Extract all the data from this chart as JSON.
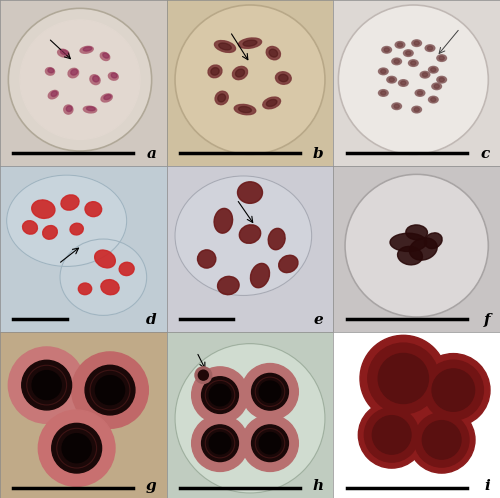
{
  "figure_size": [
    5.0,
    4.98
  ],
  "dpi": 100,
  "background_color": "#ffffff",
  "grid_rows": 3,
  "grid_cols": 3,
  "panel_labels": [
    "a",
    "b",
    "c",
    "d",
    "e",
    "f",
    "g",
    "h",
    "i"
  ],
  "label_fontsize": 11,
  "label_color": "#000000",
  "scalebar_color": "#000000",
  "panels": {
    "a": {
      "bg": "#d0c8c0",
      "cell_bg": "#ddd5cc",
      "cell_color": "#b06878"
    },
    "b": {
      "bg": "#cfc0a0",
      "cell_bg": "#d8c8a8",
      "cell_color": "#7a3838"
    },
    "c": {
      "bg": "#ddd8d4",
      "cell_bg": "#ece8e4",
      "cell_color": "#886060"
    },
    "d": {
      "bg": "#c0ccd4",
      "cell_bg": "#ccd8e0",
      "cell_color": "#cc2828"
    },
    "e": {
      "bg": "#ccccd4",
      "cell_bg": "#d4d8e0",
      "cell_color": "#6a1818"
    },
    "f": {
      "bg": "#c8c4c4",
      "cell_bg": "#dcd8d8",
      "cell_color": "#280808"
    },
    "g": {
      "bg": "#c0aa88",
      "cell_bg": "#c87878",
      "cell_color": "#1a0808"
    },
    "h": {
      "bg": "#c0ccc0",
      "cell_bg": "#d0dcd0",
      "cell_color": "#b87070"
    },
    "i": {
      "bg": "#ffffff",
      "cell_color": "#8c1c1c"
    }
  }
}
